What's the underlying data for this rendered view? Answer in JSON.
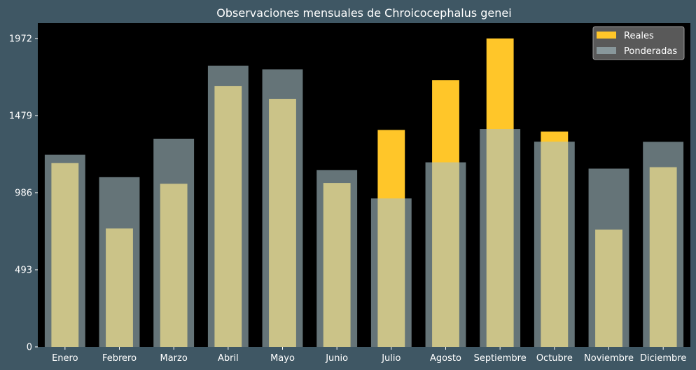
{
  "colors": {
    "background": "#3f5764",
    "plot_background": "#000000",
    "reales": "#ffc629",
    "ponderadas": "#a9c1c8",
    "legend_bg": "#595959",
    "text": "#ffffff"
  },
  "chart_data": {
    "type": "bar",
    "title": "Observaciones mensuales de Chroicocephalus genei",
    "xlabel": "",
    "ylabel": "",
    "ylim": [
      0,
      2070
    ],
    "yticks": [
      0,
      493,
      986,
      1479,
      1972
    ],
    "grid": false,
    "legend_position": "top-right",
    "categories": [
      "Enero",
      "Febrero",
      "Marzo",
      "Abril",
      "Mayo",
      "Junio",
      "Julio",
      "Agosto",
      "Septiembre",
      "Octubre",
      "Noviembre",
      "Diciembre"
    ],
    "series": [
      {
        "name": "Reales",
        "values": [
          1175,
          757,
          1043,
          1667,
          1586,
          1048,
          1387,
          1706,
          1972,
          1377,
          750,
          1149
        ]
      },
      {
        "name": "Ponderadas",
        "values": [
          1229,
          1085,
          1331,
          1798,
          1774,
          1130,
          949,
          1180,
          1393,
          1312,
          1140,
          1311
        ]
      }
    ]
  }
}
